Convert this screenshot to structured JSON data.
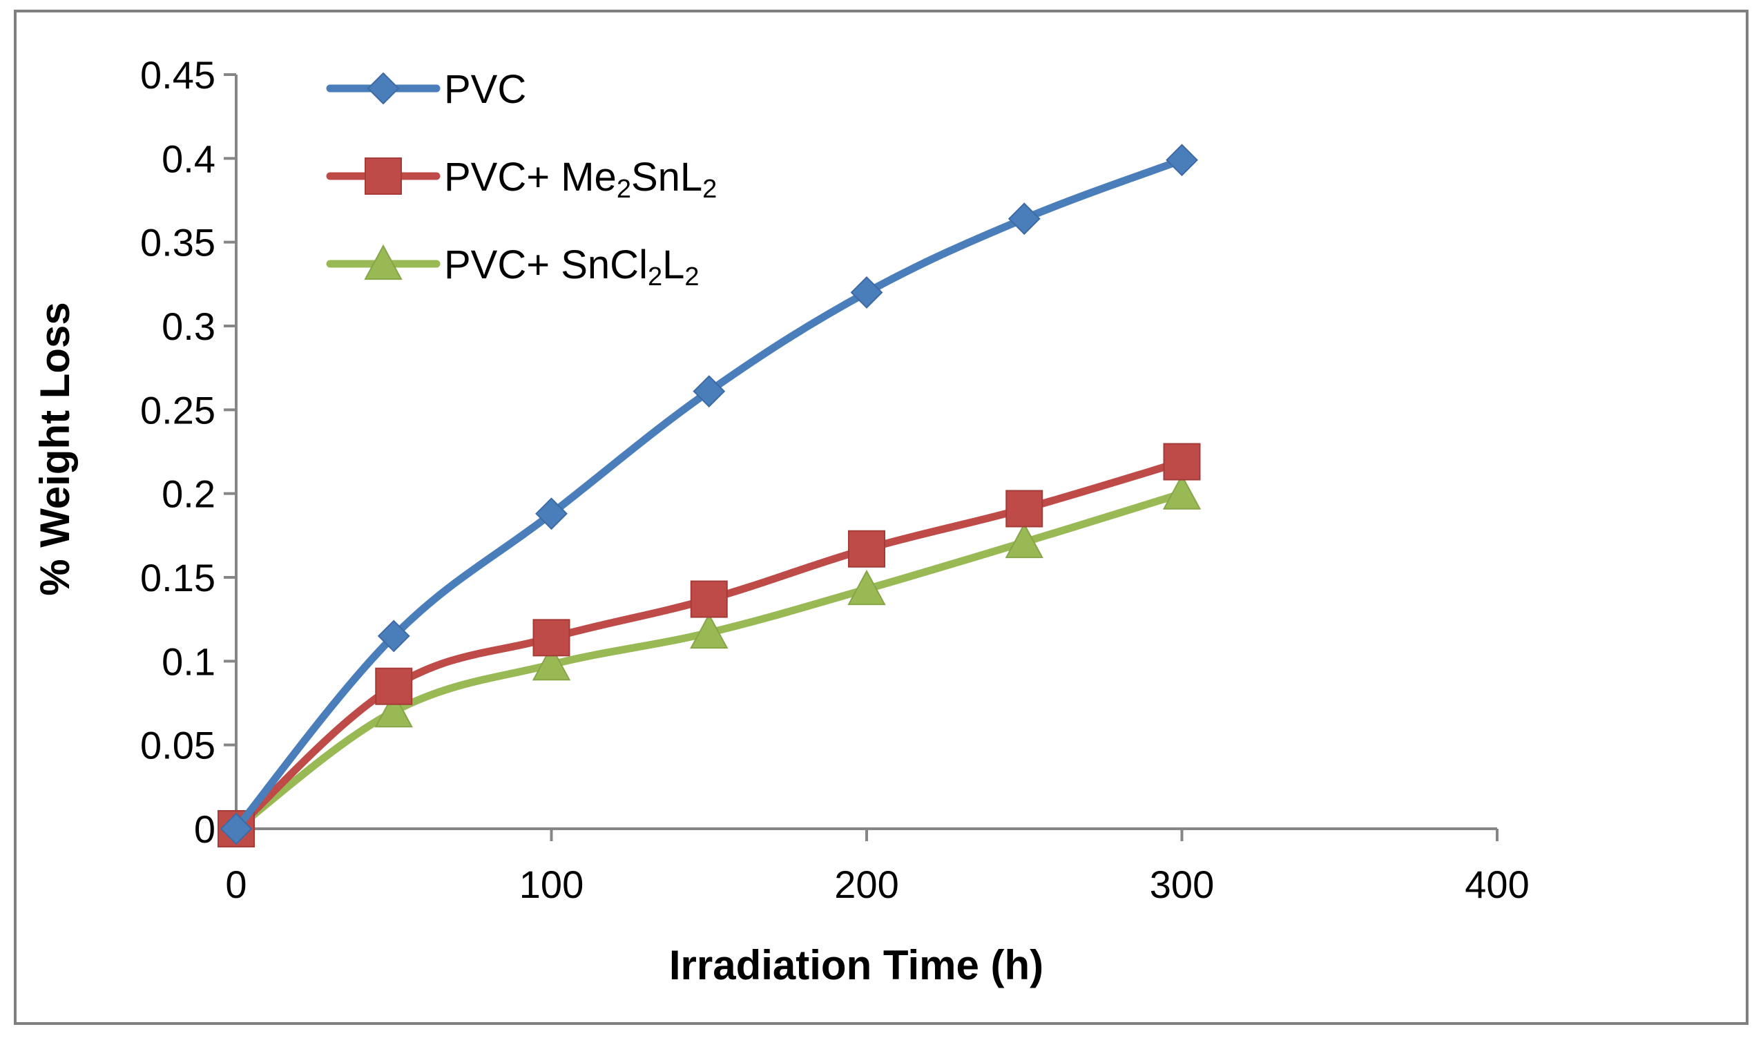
{
  "chart_data": {
    "type": "line",
    "title": "",
    "xlabel": "Irradiation Time (h)",
    "ylabel": "% Weight Loss",
    "xlim": [
      0,
      400
    ],
    "ylim": [
      0,
      0.45
    ],
    "xticks": [
      0,
      100,
      200,
      300,
      400
    ],
    "xtick_labels": [
      "0",
      "100",
      "200",
      "300",
      "400"
    ],
    "yticks": [
      0,
      0.05,
      0.1,
      0.15,
      0.2,
      0.25,
      0.3,
      0.35,
      0.4,
      0.45
    ],
    "ytick_labels": [
      "0",
      "0.05",
      "0.1",
      "0.15",
      "0.2",
      "0.25",
      "0.3",
      "0.35",
      "0.4",
      "0.45"
    ],
    "grid": false,
    "legend_position": "top-left",
    "x": [
      0,
      50,
      100,
      150,
      200,
      250,
      300
    ],
    "series": [
      {
        "name": "PVC",
        "legend": {
          "main": "PVC"
        },
        "marker": "diamond",
        "color": "#4a7ebb",
        "values": [
          0,
          0.115,
          0.188,
          0.261,
          0.32,
          0.364,
          0.399
        ]
      },
      {
        "name": "PVC+ Me2SnL2",
        "legend": {
          "main": "PVC+ Me",
          "sub1": "2",
          "mid": "SnL",
          "sub2": "2"
        },
        "marker": "square",
        "color": "#be4b48",
        "values": [
          0,
          0.085,
          0.114,
          0.137,
          0.167,
          0.191,
          0.219
        ]
      },
      {
        "name": "PVC+ SnCl2L2",
        "legend": {
          "main": "PVC+ SnCl",
          "sub1": "2",
          "mid": "L",
          "sub2": "2"
        },
        "marker": "triangle",
        "color": "#98b954",
        "values": [
          0,
          0.07,
          0.098,
          0.117,
          0.143,
          0.171,
          0.2
        ]
      }
    ]
  }
}
